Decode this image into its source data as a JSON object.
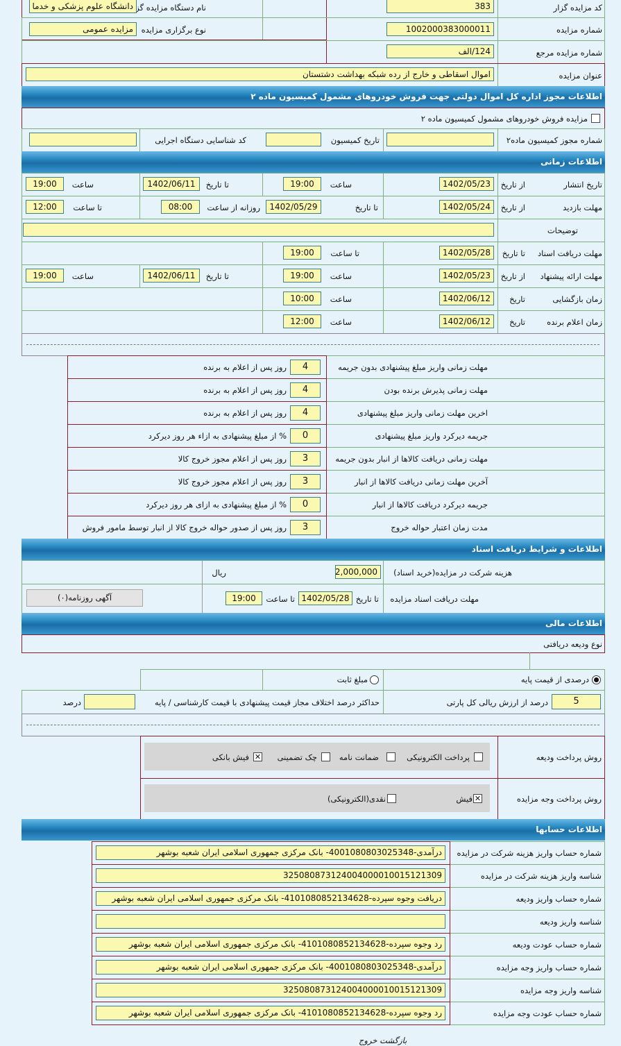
{
  "auction": {
    "code_label": "کد مزایده گزار",
    "code": "383",
    "org_name_label": "نام دستگاه مزایده گزار",
    "org_name": "دانشگاه علوم پزشکی و خدما",
    "number_label": "شماره مزایده",
    "number": "1002000383000011",
    "type_label": "نوع برگزاری مزایده",
    "type": "مزایده عمومی",
    "ref_label": "شماره مزایده مرجع",
    "ref": "124/الف",
    "title_label": "عنوان مزایده",
    "title": "اموال اسقاطی و خارج از رده شبکه بهداشت دشتستان"
  },
  "license": {
    "header": "اطلاعات مجوز اداره کل اموال دولتی جهت فروش خودروهای مشمول کمیسیون ماده ۲",
    "checkbox_label": "مزایده فروش خودروهای مشمول کمیسیون ماده ۲",
    "commission_no_label": "شماره مجوز کمیسیون ماده۲",
    "commission_no": "",
    "commission_date_label": "تاریخ کمیسیون",
    "commission_date": "",
    "exec_code_label": "کد شناسایی دستگاه اجرایی",
    "exec_code": ""
  },
  "timing": {
    "header": "اطلاعات زمانی",
    "publish": {
      "label": "تاریخ انتشار",
      "from_label": "از تاریخ",
      "from": "1402/05/23",
      "time_label": "ساعت",
      "time": "19:00",
      "to_label": "تا تاریخ",
      "to": "1402/06/11",
      "time2_label": "ساعت",
      "time2": "19:00"
    },
    "visit": {
      "label": "مهلت بازدید",
      "from_label": "از تاریخ",
      "from": "1402/05/24",
      "to_label": "تا تاریخ",
      "to": "1402/05/29",
      "daily_label": "روزانه از ساعت",
      "daily_from": "08:00",
      "until_label": "تا ساعت",
      "daily_to": "12:00"
    },
    "notes": {
      "label": "توضیحات",
      "value": ""
    },
    "docs": {
      "label": "مهلت دریافت اسناد",
      "to_label": "تا تاریخ",
      "to": "1402/05/28",
      "time_label": "تا ساعت",
      "time": "19:00"
    },
    "offer": {
      "label": "مهلت ارائه پیشنهاد",
      "from_label": "از تاریخ",
      "from": "1402/05/23",
      "time_label": "ساعت",
      "time": "19:00",
      "to_label": "تا تاریخ",
      "to": "1402/06/11",
      "time2_label": "ساعت",
      "time2": "19:00"
    },
    "opening": {
      "label": "زمان بازگشایی",
      "date_label": "تاریخ",
      "date": "1402/06/12",
      "time_label": "ساعت",
      "time": "10:00"
    },
    "winner": {
      "label": "زمان اعلام برنده",
      "date_label": "تاریخ",
      "date": "1402/06/12",
      "time_label": "ساعت",
      "time": "12:00"
    }
  },
  "deadlines": [
    {
      "label": "مهلت زمانی واریز مبلغ پیشنهادی بدون جریمه",
      "value": "4",
      "unit": "روز پس از اعلام به برنده"
    },
    {
      "label": "مهلت زمانی پذیرش برنده بودن",
      "value": "4",
      "unit": "روز پس از اعلام به برنده"
    },
    {
      "label": "اخرین مهلت زمانی واریز مبلغ پیشنهادی",
      "value": "4",
      "unit": "روز پس از اعلام به برنده"
    },
    {
      "label": "جریمه دیرکرد واریز مبلغ پیشنهادی",
      "value": "0",
      "unit": "% از مبلغ پیشنهادی به ازاء هر روز دیرکرد"
    },
    {
      "label": "مهلت زمانی دریافت کالاها از انبار بدون جریمه",
      "value": "3",
      "unit": "روز پس از اعلام مجوز خروج کالا"
    },
    {
      "label": "آخرین مهلت زمانی دریافت کالاها از انبار",
      "value": "3",
      "unit": "روز پس از اعلام مجوز خروج کالا"
    },
    {
      "label": "جریمه دیرکرد دریافت کالاها از انبار",
      "value": "0",
      "unit": "% از مبلغ پیشنهادی به ازای هر روز دیرکرد"
    },
    {
      "label": "مدت زمان اعتبار حواله خروج",
      "value": "3",
      "unit": "روز پس از صدور حواله خروج کالا از انبار توسط مامور فروش"
    }
  ],
  "documents": {
    "header": "اطلاعات و شرایط دریافت اسناد",
    "fee_label": "هزینه شرکت در مزایده(خرید اسناد)",
    "fee": "2,000,000",
    "currency": "ریال",
    "deadline_label": "مهلت دریافت اسناد مزایده",
    "to_label": "تا تاریخ",
    "to": "1402/05/28",
    "time_label": "تا ساعت",
    "time": "19:00",
    "newspaper_button": "آگهی روزنامه(۰)"
  },
  "finance": {
    "header": "اطلاعات مالی",
    "deposit_type_label": "نوع ودیعه دریافتی",
    "percent_option": "درصدی از قیمت پایه",
    "percent_selected": true,
    "fixed_option": "مبلغ ثابت",
    "fixed_selected": false,
    "percent_value": "5",
    "percent_unit": "درصد از ارزش ریالی کل پارتی",
    "max_diff_label": "حداکثر درصد اختلاف مجاز قیمت پیشنهادی با قیمت کارشناسی / پایه",
    "max_diff": "",
    "max_diff_unit": "درصد",
    "deposit_method_label": "روش پرداخت ودیعه",
    "deposit_methods": [
      {
        "label": "پرداخت الکترونیکی",
        "checked": false
      },
      {
        "label": "ضمانت نامه",
        "checked": false
      },
      {
        "label": "چک تضمینی",
        "checked": false
      },
      {
        "label": "فیش بانکی",
        "checked": true
      }
    ],
    "payment_method_label": "روش پرداخت وجه مزایده",
    "payment_methods": [
      {
        "label": "فیش",
        "checked": true
      },
      {
        "label": "نقدی(الکترونیکی)",
        "checked": false
      }
    ]
  },
  "accounts": {
    "header": "اطلاعات حسابها",
    "rows": [
      {
        "label": "شماره حساب واریز هزینه شرکت در مزایده",
        "value": "درآمدی-4001080803025348- بانک مرکزی جمهوری اسلامی ایران شعبه بوشهر"
      },
      {
        "label": "شناسه واریز هزینه شرکت در مزایده",
        "value": "325080873124004000010015121309"
      },
      {
        "label": "شماره حساب واریز ودیعه",
        "value": "دریافت وجوه سپرده-4101080852134628- بانک مرکزی جمهوری اسلامی ایران شعبه بوشهر"
      },
      {
        "label": "شناسه واریز ودیعه",
        "value": ""
      },
      {
        "label": "شماره حساب عودت ودیعه",
        "value": "رد وجوه سپرده-4101080852134628- بانک مرکزی جمهوری اسلامی ایران شعبه بوشهر"
      },
      {
        "label": "شماره حساب واریز وجه مزایده",
        "value": "درآمدی-4001080803025348- بانک مرکزی جمهوری اسلامی ایران شعبه بوشهر"
      },
      {
        "label": "شناسه واریز وجه مزایده",
        "value": "325080873124004000010015121309"
      },
      {
        "label": "شماره حساب عودت وجه مزایده",
        "value": "رد وجوه سپرده-4101080852134628- بانک مرکزی جمهوری اسلامی ایران شعبه بوشهر"
      }
    ]
  },
  "footer": {
    "back": "بازگشت",
    "exit": "خروج"
  },
  "colors": {
    "header": "#1a6ea5",
    "input_bg": "#fbf9b1",
    "page_bg": "#e6f3fb"
  }
}
